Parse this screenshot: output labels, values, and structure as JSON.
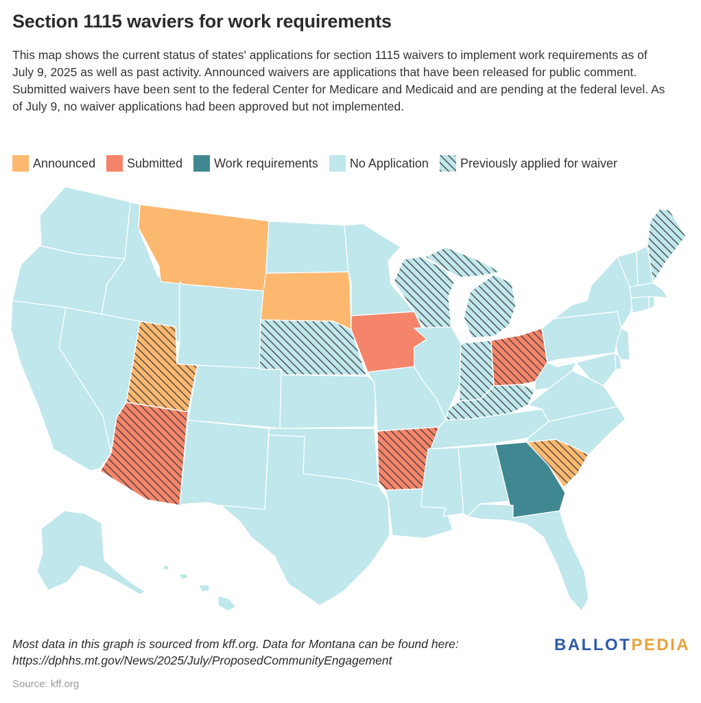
{
  "title": "Section 1115 waviers for work requirements",
  "description": "This map shows the current status of states' applications for section 1115 waivers to implement work requirements as of July 9, 2025 as well as past activity. Announced waivers are applications that have been released for public comment. Submitted waivers have been sent to the federal Center for Medicare and Medicaid and are pending at the federal level. As of July 9, no waiver applications had been approved but not implemented.",
  "legend": [
    {
      "label": "Announced",
      "color": "#fdb870"
    },
    {
      "label": "Submitted",
      "color": "#f5856a"
    },
    {
      "label": "Work requirements",
      "color": "#3f8791"
    },
    {
      "label": "No Application",
      "color": "#bfe7ec"
    },
    {
      "label": "Previously applied for waiver",
      "color": "#bfe7ec",
      "pattern": "hatched"
    }
  ],
  "map": {
    "base_color": "#bfe7ec",
    "border_color": "#ffffff",
    "hatch_color": "#3b3b3b",
    "states": [
      {
        "id": "montana",
        "status": "Announced",
        "previously_applied": false
      },
      {
        "id": "south-dakota",
        "status": "Announced",
        "previously_applied": false
      },
      {
        "id": "utah",
        "status": "Announced",
        "previously_applied": true
      },
      {
        "id": "south-carolina",
        "status": "Announced",
        "previously_applied": true
      },
      {
        "id": "arizona",
        "status": "Submitted",
        "previously_applied": true
      },
      {
        "id": "arkansas",
        "status": "Submitted",
        "previously_applied": true
      },
      {
        "id": "iowa",
        "status": "Submitted",
        "previously_applied": false
      },
      {
        "id": "ohio",
        "status": "Submitted",
        "previously_applied": true
      },
      {
        "id": "georgia",
        "status": "Work requirements",
        "previously_applied": false
      },
      {
        "id": "nebraska",
        "status": "No Application",
        "previously_applied": true
      },
      {
        "id": "wisconsin",
        "status": "No Application",
        "previously_applied": true
      },
      {
        "id": "michigan",
        "status": "No Application",
        "previously_applied": true
      },
      {
        "id": "indiana",
        "status": "No Application",
        "previously_applied": true
      },
      {
        "id": "kentucky",
        "status": "No Application",
        "previously_applied": true
      },
      {
        "id": "maine",
        "status": "No Application",
        "previously_applied": true
      }
    ]
  },
  "footnote": "Most data in this graph is sourced from kff.org. Data for Montana can be found here: https://dphhs.mt.gov/News/2025/July/ProposedCommunityEngagement",
  "source": "Source: kff.org",
  "logo": {
    "part1": "BALLOT",
    "part2": "PEDIA"
  }
}
